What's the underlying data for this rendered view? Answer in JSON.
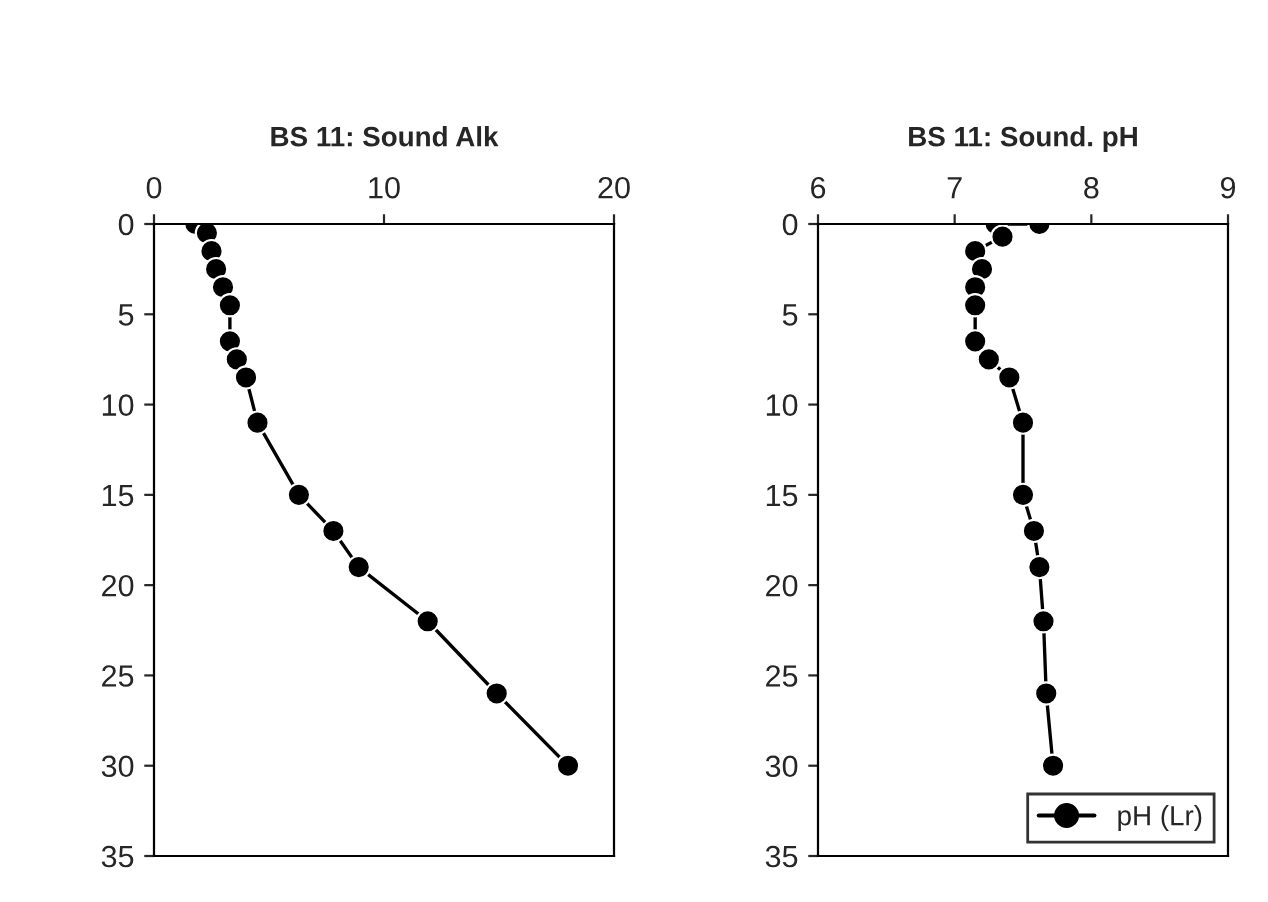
{
  "chart_data": [
    {
      "type": "line",
      "title": "BS 11: Sound Alk",
      "marker": "circle",
      "line_style": "solid",
      "grid": false,
      "legend": false,
      "xlim": [
        0,
        20
      ],
      "xticks": [
        0,
        10,
        20
      ],
      "ylim": [
        35,
        0
      ],
      "yticks": [
        0,
        5,
        10,
        15,
        20,
        25,
        30,
        35
      ],
      "series": [
        {
          "color": "#000000",
          "x": [
            1.8,
            2.3,
            2.5,
            2.7,
            3.0,
            3.3,
            3.3,
            3.6,
            4.0,
            4.5,
            6.3,
            7.8,
            8.9,
            11.9,
            14.9,
            18.0
          ],
          "values": [
            0,
            0.5,
            1.5,
            2.5,
            3.5,
            4.5,
            6.5,
            7.5,
            8.5,
            11,
            15,
            17,
            19,
            22,
            26,
            30
          ]
        }
      ]
    },
    {
      "type": "line",
      "title": "BS 11: Sound. pH",
      "marker": "circle",
      "line_style": "solid",
      "grid": false,
      "legend": "bottom right",
      "xlim": [
        6,
        9
      ],
      "xticks": [
        6,
        7,
        8,
        9
      ],
      "ylim": [
        35,
        0
      ],
      "yticks": [
        0,
        5,
        10,
        15,
        20,
        25,
        30,
        35
      ],
      "series": [
        {
          "name": "pH (Lr)",
          "color": "#000000",
          "x": [
            7.62,
            7.3,
            7.35,
            7.15,
            7.2,
            7.15,
            7.15,
            7.15,
            7.25,
            7.4,
            7.5,
            7.5,
            7.58,
            7.62,
            7.65,
            7.67,
            7.72
          ],
          "values": [
            0,
            0,
            0.7,
            1.5,
            2.5,
            3.5,
            4.5,
            6.5,
            7.5,
            8.5,
            11,
            15,
            17,
            19,
            22,
            26,
            30
          ]
        }
      ]
    }
  ]
}
